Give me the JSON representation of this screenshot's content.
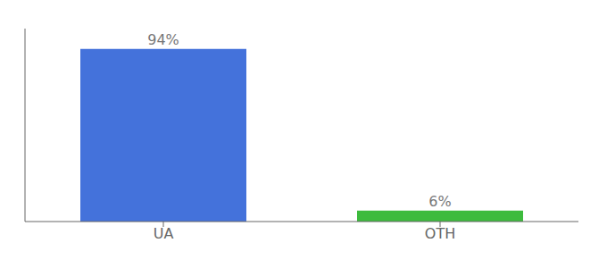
{
  "chart_data": {
    "type": "bar",
    "categories": [
      "UA",
      "OTH"
    ],
    "values": [
      94,
      6
    ],
    "value_labels": [
      "94%",
      "6%"
    ],
    "colors": [
      "#4472db",
      "#3dbb3d"
    ],
    "ylim": [
      0,
      105
    ],
    "data_labels": true,
    "tick_labels": "x",
    "grid": false
  }
}
